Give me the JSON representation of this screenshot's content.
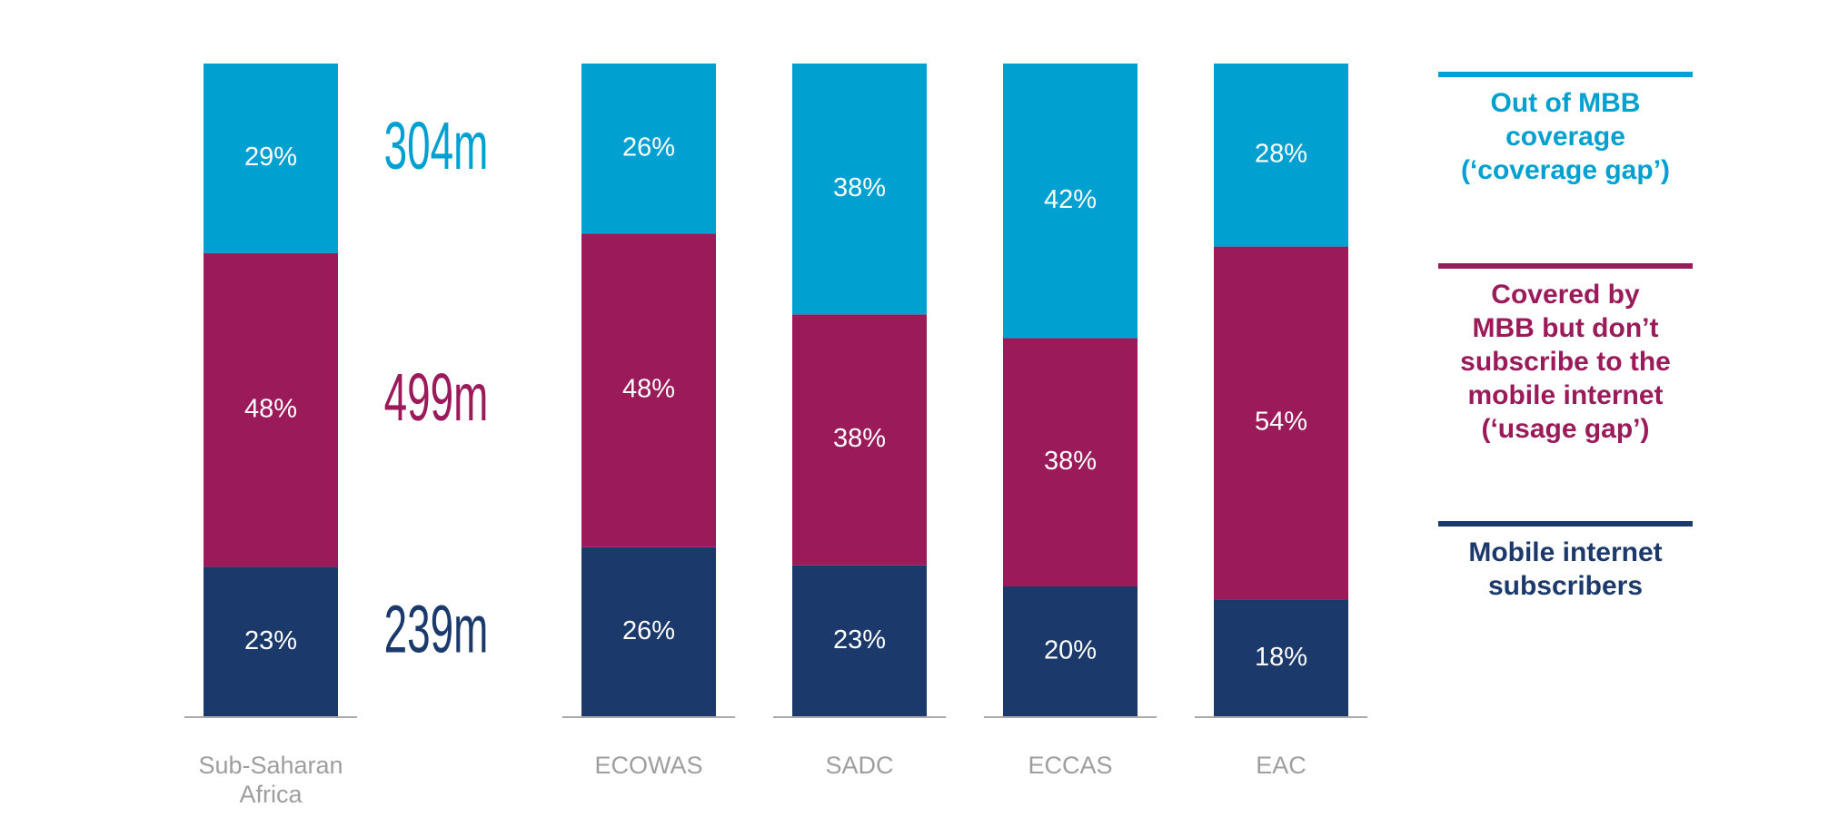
{
  "chart_data": {
    "type": "bar",
    "stacked": true,
    "percent": true,
    "categories": [
      "Sub-Saharan Africa",
      "ECOWAS",
      "SADC",
      "ECCAS",
      "EAC"
    ],
    "category_lines": [
      [
        "Sub-Saharan",
        "Africa"
      ],
      [
        "ECOWAS"
      ],
      [
        "SADC"
      ],
      [
        "ECCAS"
      ],
      [
        "EAC"
      ]
    ],
    "series": [
      {
        "key": "subscribers",
        "legend_lines": [
          "Mobile internet",
          "subscribers"
        ],
        "color": "#1b3a6b",
        "values": [
          23,
          26,
          23,
          20,
          18
        ],
        "labels": [
          "23%",
          "26%",
          "23%",
          "20%",
          "18%"
        ]
      },
      {
        "key": "usage_gap",
        "legend_lines": [
          "Covered by",
          "MBB but don’t",
          "subscribe to the",
          "mobile internet",
          "(‘usage gap’)"
        ],
        "color": "#9b1b5a",
        "values": [
          48,
          48,
          38,
          38,
          54
        ],
        "labels": [
          "48%",
          "48%",
          "38%",
          "38%",
          "54%"
        ]
      },
      {
        "key": "coverage_gap",
        "legend_lines": [
          "Out of MBB",
          "coverage",
          "(‘coverage gap’)"
        ],
        "color": "#00a0d1",
        "values": [
          29,
          26,
          38,
          42,
          28
        ],
        "labels": [
          "29%",
          "26%",
          "38%",
          "42%",
          "28%"
        ]
      }
    ],
    "absolute_labels": [
      {
        "series": "coverage_gap",
        "text": "304m"
      },
      {
        "series": "usage_gap",
        "text": "499m"
      },
      {
        "series": "subscribers",
        "text": "239m"
      }
    ],
    "legend_position": "right",
    "grid": false
  }
}
